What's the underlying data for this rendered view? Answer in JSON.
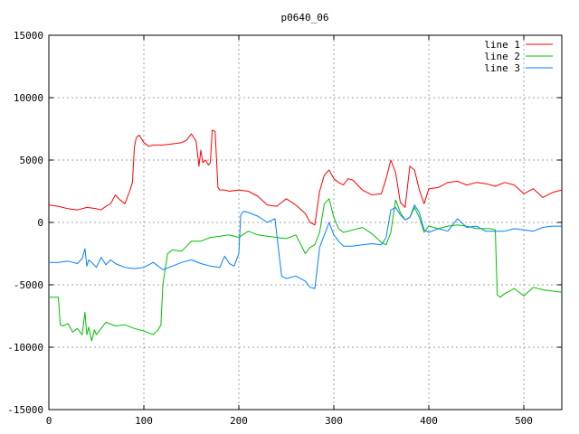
{
  "chart_data": {
    "type": "line",
    "title": "p0640_06",
    "xlabel": "",
    "ylabel": "",
    "xlim": [
      0,
      540
    ],
    "ylim": [
      -15000,
      15000
    ],
    "x_ticks": [
      0,
      100,
      200,
      300,
      400,
      500
    ],
    "y_ticks": [
      -15000,
      -10000,
      -5000,
      0,
      5000,
      10000,
      15000
    ],
    "grid": true,
    "legend_position": "top-right",
    "colors": {
      "line1": "#ff0000",
      "line2": "#00c000",
      "line3": "#0080ff",
      "grid": "#a0a0a0",
      "axis": "#000000"
    },
    "series": [
      {
        "name": "line 1",
        "x": [
          0,
          10,
          20,
          30,
          40,
          50,
          55,
          60,
          65,
          70,
          75,
          80,
          85,
          88,
          90,
          92,
          95,
          100,
          105,
          110,
          120,
          130,
          140,
          145,
          150,
          155,
          158,
          160,
          162,
          165,
          168,
          170,
          172,
          175,
          178,
          180,
          185,
          190,
          200,
          210,
          220,
          230,
          240,
          245,
          250,
          260,
          270,
          275,
          280,
          285,
          290,
          295,
          300,
          305,
          310,
          315,
          320,
          330,
          340,
          350,
          355,
          360,
          365,
          370,
          375,
          380,
          385,
          390,
          395,
          400,
          410,
          420,
          430,
          440,
          450,
          460,
          470,
          480,
          490,
          500,
          510,
          520,
          530,
          540
        ],
        "values": [
          1400,
          1300,
          1100,
          1000,
          1200,
          1100,
          1000,
          1300,
          1500,
          2200,
          1800,
          1500,
          2500,
          3200,
          6000,
          6800,
          7000,
          6400,
          6100,
          6200,
          6200,
          6300,
          6400,
          6600,
          7100,
          6500,
          4500,
          5800,
          4800,
          5000,
          4600,
          4800,
          7400,
          7300,
          2800,
          2600,
          2600,
          2500,
          2600,
          2500,
          2100,
          1400,
          1300,
          1600,
          1900,
          1400,
          700,
          0,
          -200,
          2500,
          3800,
          4200,
          3500,
          3200,
          3000,
          3500,
          3400,
          2600,
          2200,
          2300,
          3500,
          5000,
          4000,
          1600,
          1200,
          4500,
          4200,
          2600,
          1500,
          2700,
          2800,
          3200,
          3300,
          3000,
          3200,
          3100,
          2900,
          3200,
          3000,
          2300,
          2700,
          2000,
          2400,
          2600
        ]
      },
      {
        "name": "line 2",
        "x": [
          0,
          5,
          10,
          12,
          15,
          20,
          25,
          30,
          35,
          38,
          40,
          42,
          45,
          48,
          50,
          55,
          60,
          70,
          80,
          90,
          100,
          110,
          115,
          118,
          120,
          122,
          125,
          130,
          140,
          150,
          160,
          170,
          180,
          190,
          200,
          210,
          220,
          230,
          240,
          250,
          260,
          270,
          275,
          280,
          285,
          290,
          295,
          300,
          305,
          310,
          320,
          330,
          340,
          350,
          355,
          360,
          365,
          370,
          375,
          380,
          385,
          390,
          395,
          400,
          410,
          420,
          430,
          440,
          450,
          460,
          465,
          470,
          472,
          475,
          480,
          490,
          500,
          510,
          520,
          530,
          540
        ],
        "values": [
          -6000,
          -6000,
          -6000,
          -8200,
          -8300,
          -8100,
          -8800,
          -8500,
          -9000,
          -7200,
          -9000,
          -8400,
          -9500,
          -8600,
          -9000,
          -8500,
          -8000,
          -8300,
          -8200,
          -8500,
          -8700,
          -9000,
          -8600,
          -8200,
          -5000,
          -4000,
          -2500,
          -2200,
          -2300,
          -1500,
          -1500,
          -1200,
          -1100,
          -1000,
          -1200,
          -700,
          -1000,
          -1100,
          -1200,
          -1300,
          -1000,
          -2500,
          -2000,
          -1800,
          -800,
          1500,
          1900,
          400,
          -500,
          -800,
          -600,
          -400,
          -900,
          -1600,
          -1800,
          -800,
          1800,
          800,
          200,
          400,
          1200,
          400,
          -800,
          -300,
          -500,
          -300,
          -200,
          -300,
          -500,
          -500,
          -500,
          -600,
          -5800,
          -6000,
          -5700,
          -5300,
          -5900,
          -5200,
          -5400,
          -5500,
          -5600
        ]
      },
      {
        "name": "line 3",
        "x": [
          0,
          10,
          20,
          30,
          35,
          38,
          40,
          42,
          45,
          50,
          55,
          60,
          65,
          70,
          80,
          90,
          100,
          110,
          120,
          130,
          140,
          150,
          160,
          170,
          180,
          185,
          190,
          195,
          200,
          202,
          205,
          210,
          220,
          230,
          238,
          240,
          245,
          250,
          260,
          270,
          275,
          280,
          285,
          290,
          295,
          300,
          305,
          310,
          320,
          330,
          340,
          350,
          355,
          360,
          365,
          370,
          375,
          380,
          385,
          390,
          395,
          400,
          410,
          420,
          430,
          440,
          450,
          460,
          470,
          480,
          490,
          500,
          510,
          520,
          530,
          540
        ],
        "values": [
          -3200,
          -3200,
          -3100,
          -3300,
          -2900,
          -2100,
          -3500,
          -3000,
          -3200,
          -3600,
          -2800,
          -3400,
          -3000,
          -3300,
          -3600,
          -3700,
          -3600,
          -3200,
          -3800,
          -3500,
          -3200,
          -3000,
          -3300,
          -3500,
          -3600,
          -2700,
          -3300,
          -3500,
          -2500,
          600,
          900,
          800,
          500,
          0,
          300,
          -1000,
          -4300,
          -4500,
          -4300,
          -4700,
          -5200,
          -5300,
          -2000,
          -1000,
          0,
          -1000,
          -1500,
          -1900,
          -1900,
          -1800,
          -1700,
          -1800,
          -1200,
          1000,
          1200,
          600,
          200,
          400,
          1400,
          800,
          -600,
          -800,
          -500,
          -700,
          300,
          -400,
          -300,
          -700,
          -700,
          -700,
          -500,
          -600,
          -700,
          -400,
          -300,
          -300
        ]
      }
    ]
  }
}
